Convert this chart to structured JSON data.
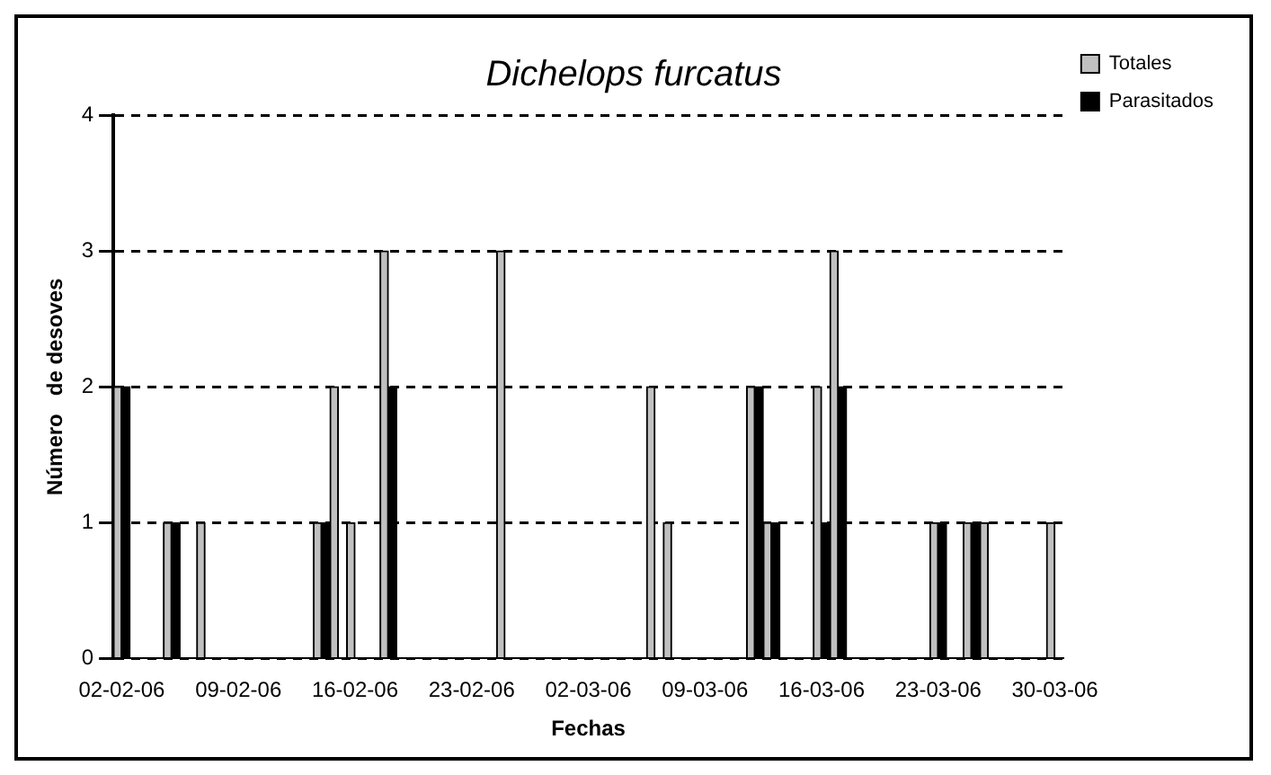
{
  "chart_data": {
    "type": "bar",
    "title": "Dichelops furcatus",
    "xlabel": "Fechas",
    "ylabel": "Número   de desoves",
    "categories": [
      "02-02-06",
      null,
      null,
      null,
      null,
      null,
      null,
      "09-02-06",
      null,
      null,
      null,
      null,
      null,
      null,
      "16-02-06",
      null,
      null,
      null,
      null,
      null,
      null,
      "23-02-06",
      null,
      null,
      null,
      null,
      null,
      null,
      "02-03-06",
      null,
      null,
      null,
      null,
      null,
      null,
      "09-03-06",
      null,
      null,
      null,
      null,
      null,
      null,
      "16-03-06",
      null,
      null,
      null,
      null,
      null,
      null,
      "23-03-06",
      null,
      null,
      null,
      null,
      null,
      null,
      "30-03-06"
    ],
    "series": [
      {
        "name": "Totales",
        "color": "#c0c0c0",
        "values": [
          2,
          0,
          0,
          1,
          0,
          1,
          0,
          0,
          0,
          0,
          0,
          0,
          1,
          2,
          1,
          0,
          3,
          0,
          0,
          0,
          0,
          0,
          0,
          3,
          0,
          0,
          0,
          0,
          0,
          0,
          0,
          0,
          2,
          1,
          0,
          0,
          0,
          0,
          2,
          1,
          0,
          0,
          2,
          3,
          0,
          0,
          0,
          0,
          0,
          1,
          0,
          1,
          1,
          0,
          0,
          0,
          1
        ]
      },
      {
        "name": "Parasitados",
        "color": "#000000",
        "values": [
          2,
          0,
          0,
          1,
          0,
          0,
          0,
          0,
          0,
          0,
          0,
          0,
          1,
          0,
          0,
          0,
          2,
          0,
          0,
          0,
          0,
          0,
          0,
          0,
          0,
          0,
          0,
          0,
          0,
          0,
          0,
          0,
          0,
          0,
          0,
          0,
          0,
          0,
          2,
          1,
          0,
          0,
          1,
          2,
          0,
          0,
          0,
          0,
          0,
          1,
          0,
          1,
          0,
          0,
          0,
          0,
          0
        ]
      }
    ],
    "ylim": [
      0,
      4
    ],
    "yticks": [
      0,
      1,
      2,
      3,
      4
    ],
    "grid": "y",
    "legend": "top right"
  }
}
